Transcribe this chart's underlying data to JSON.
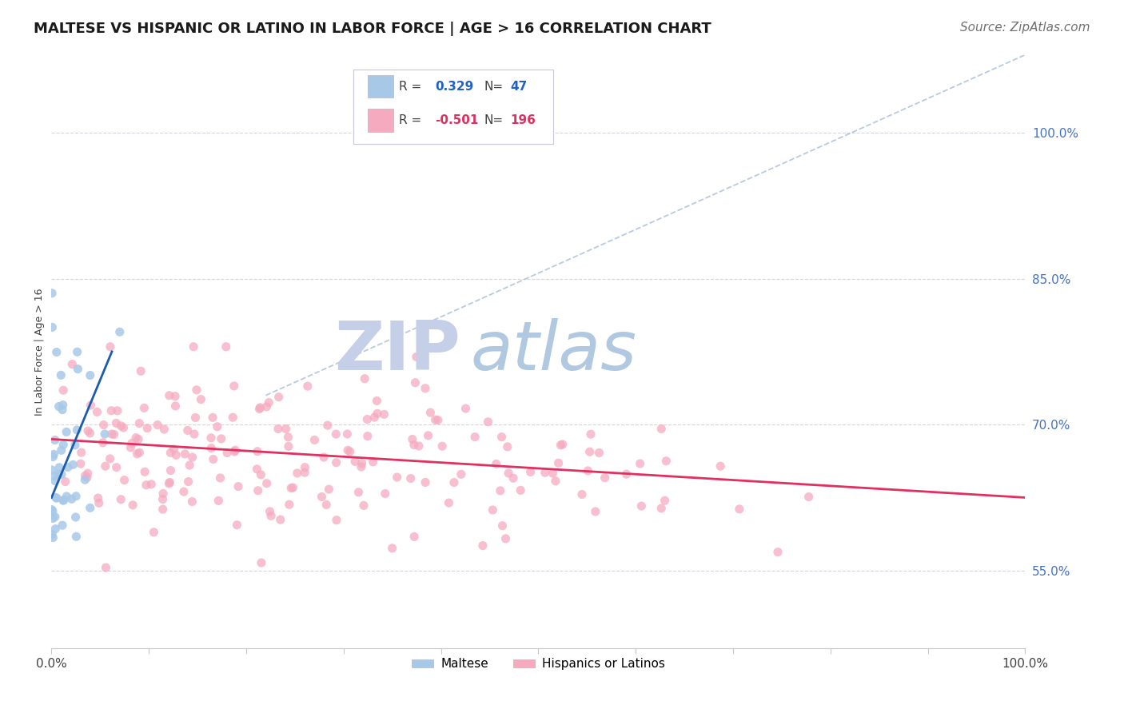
{
  "title": "MALTESE VS HISPANIC OR LATINO IN LABOR FORCE | AGE > 16 CORRELATION CHART",
  "source": "Source: ZipAtlas.com",
  "ylabel": "In Labor Force | Age > 16",
  "xlim": [
    0.0,
    1.0
  ],
  "ylim": [
    0.47,
    1.08
  ],
  "yticks": [
    0.55,
    0.7,
    0.85,
    1.0
  ],
  "ytick_labels": [
    "55.0%",
    "70.0%",
    "85.0%",
    "100.0%"
  ],
  "legend_r_maltese": "0.329",
  "legend_n_maltese": "47",
  "legend_r_hispanic": "-0.501",
  "legend_n_hispanic": "196",
  "maltese_color": "#a8c8e8",
  "maltese_line_color": "#1a5cb0",
  "hispanic_color": "#f5aabf",
  "hispanic_line_color": "#e03060",
  "grid_color": "#d0d0e0",
  "watermark_zip": "ZIP",
  "watermark_atlas": "atlas",
  "watermark_color_zip": "#c5cfe8",
  "watermark_color_atlas": "#b0c8e0",
  "background_color": "#ffffff",
  "title_fontsize": 13,
  "ylabel_fontsize": 9,
  "tick_fontsize": 11,
  "source_fontsize": 11,
  "legend_fontsize": 11,
  "maltese_trend_x": [
    0.0,
    0.062
  ],
  "maltese_trend_y": [
    0.625,
    0.775
  ],
  "hispanic_trend_x": [
    0.0,
    1.0
  ],
  "hispanic_trend_y": [
    0.685,
    0.625
  ],
  "ref_line_x": [
    0.22,
    1.0
  ],
  "ref_line_y": [
    0.73,
    1.08
  ]
}
